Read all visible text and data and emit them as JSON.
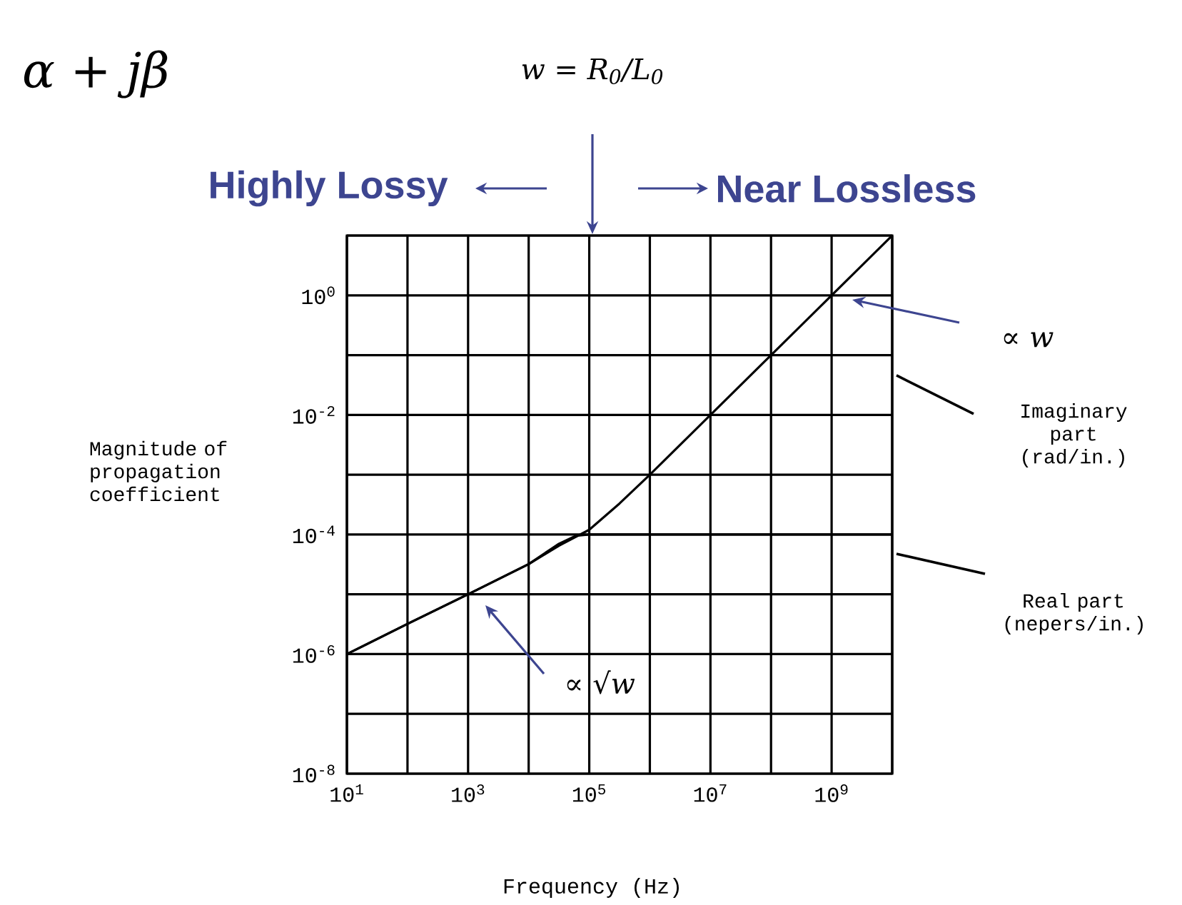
{
  "chart_data": {
    "type": "line",
    "xlabel": "Frequency (Hz)",
    "ylabel": "Magnitude of propagation coefficient",
    "log": "xy",
    "grid": true,
    "xlim": [
      10,
      10000000000
    ],
    "ylim": [
      1e-08,
      10
    ],
    "xticks": [
      {
        "value": 10,
        "label": "10$^{1}$"
      },
      {
        "value": 100,
        "label": null
      },
      {
        "value": 1000,
        "label": "10$^{3}$"
      },
      {
        "value": 10000,
        "label": null
      },
      {
        "value": 100000,
        "label": "10$^{5}$"
      },
      {
        "value": 1000000,
        "label": null
      },
      {
        "value": 10000000,
        "label": "10$^{7}$"
      },
      {
        "value": 100000000,
        "label": null
      },
      {
        "value": 1000000000,
        "label": "10$^{9}$"
      },
      {
        "value": 10000000000,
        "label": null
      }
    ],
    "yticks": [
      {
        "value": 1e-08,
        "label": "10$^{-8}$"
      },
      {
        "value": 1e-07,
        "label": null
      },
      {
        "value": 1e-06,
        "label": "10$^{-6}$"
      },
      {
        "value": 1e-05,
        "label": null
      },
      {
        "value": 0.0001,
        "label": "10$^{-4}$"
      },
      {
        "value": 0.001,
        "label": null
      },
      {
        "value": 0.01,
        "label": "10$^{-2}$"
      },
      {
        "value": 0.1,
        "label": null
      },
      {
        "value": 1,
        "label": "10$^{0}$"
      },
      {
        "value": 10,
        "label": null
      }
    ],
    "series": [
      {
        "name": "Imaginary part (rad/in.)",
        "color": "#000000",
        "x": [
          10,
          100,
          1000,
          10000,
          31600,
          100000,
          316000,
          1000000,
          10000000,
          100000000,
          1000000000,
          10000000000
        ],
        "values": [
          1e-06,
          3.2e-06,
          1e-05,
          3.2e-05,
          6.5e-05,
          0.00012,
          0.00033,
          0.001,
          0.01,
          0.1,
          1,
          10
        ]
      },
      {
        "name": "Real part (nepers/in.)",
        "color": "#000000",
        "x": [
          10,
          100,
          1000,
          10000,
          31600,
          60000,
          100000,
          10000000000
        ],
        "values": [
          1e-06,
          3.2e-06,
          1e-05,
          3.2e-05,
          7e-05,
          9.5e-05,
          0.0001,
          0.0001
        ]
      }
    ],
    "annotations": [
      "α + jβ",
      "w = R$_{0}$/L$_{0}$",
      "Highly Lossy",
      "Near Lossless",
      "∝ w",
      "∝ √w"
    ]
  }
}
